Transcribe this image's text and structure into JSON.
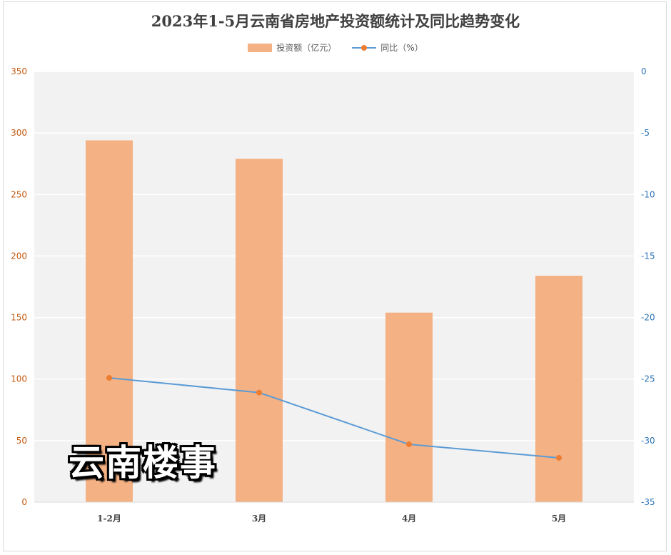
{
  "colors": {
    "bar": "#f4b183",
    "line": "#5b9bd5",
    "marker": "#ed7d31",
    "left_axis_text": "#c55a11",
    "right_axis_text": "#2e75b6",
    "plot_background": "#f2f2f2",
    "grid": "#ffffff"
  },
  "chart_data": {
    "type": "bar",
    "title": "2023年1-5月云南省房地产投资额统计及同比趋势变化",
    "categories": [
      "1-2月",
      "3月",
      "4月",
      "5月"
    ],
    "series": [
      {
        "name": "投资额（亿元）",
        "type": "bar",
        "axis": "left",
        "values": [
          294,
          279,
          154,
          184
        ]
      },
      {
        "name": "同比（%）",
        "type": "line",
        "axis": "right",
        "values": [
          -24.9,
          -26.1,
          -30.3,
          -31.4
        ]
      }
    ],
    "y_left": {
      "range": [
        0,
        350
      ],
      "ticks": [
        0,
        50,
        100,
        150,
        200,
        250,
        300,
        350
      ]
    },
    "y_right": {
      "range": [
        -35,
        0
      ],
      "ticks": [
        0,
        -5,
        -10,
        -15,
        -20,
        -25,
        -30,
        -35
      ]
    },
    "grid": true,
    "legend_position": "top"
  },
  "watermark": "云南楼事"
}
